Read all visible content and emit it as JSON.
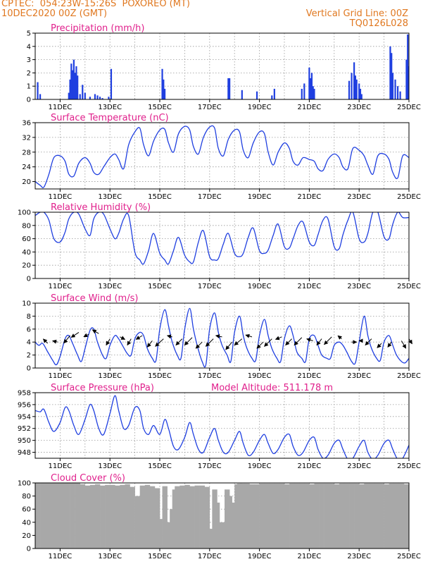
{
  "header": {
    "line1_left": "CPTEC:  054:23W-15:26S  POXOREO (MT)",
    "line2_left": "10DEC2020 00Z (GMT)",
    "line2_right": "Vertical Grid Line: 00Z",
    "line3_right": "TQ0126L028"
  },
  "colors": {
    "header": "#e07820",
    "title": "#e0208c",
    "line": "#1f3fe0",
    "bar": "#1f3fe0",
    "cloud": "#a8a8a8"
  },
  "x_axis": {
    "start": "10DEC2020 00Z",
    "end": "25DEC2020 00Z",
    "tick_labels": [
      "11DEC",
      "13DEC",
      "15DEC",
      "17DEC",
      "19DEC",
      "21DEC",
      "23DEC",
      "25DEC"
    ],
    "tick_days": [
      11,
      13,
      15,
      17,
      19,
      21,
      23,
      25
    ],
    "grid_days": [
      11,
      12,
      13,
      14,
      15,
      16,
      17,
      18,
      19,
      20,
      21,
      22,
      23,
      24
    ]
  },
  "chart_data": [
    {
      "type": "bar",
      "title": "Precipitation (mm/h)",
      "ylim": [
        0,
        5
      ],
      "yticks": [
        0,
        1,
        2,
        3,
        4,
        5
      ],
      "x": [
        10.1,
        10.2,
        11.35,
        11.4,
        11.45,
        11.5,
        11.55,
        11.6,
        11.65,
        11.7,
        11.8,
        11.9,
        12.0,
        12.2,
        12.4,
        12.5,
        12.6,
        12.7,
        12.95,
        13.05,
        15.1,
        15.15,
        15.2,
        17.75,
        17.8,
        18.3,
        18.9,
        19.5,
        19.6,
        20.7,
        20.8,
        21.0,
        21.05,
        21.1,
        21.15,
        21.2,
        22.6,
        22.7,
        22.8,
        22.85,
        22.9,
        23.0,
        23.05,
        23.1,
        24.25,
        24.3,
        24.35,
        24.45,
        24.55,
        24.65,
        24.9,
        24.95,
        25.0,
        25.05
      ],
      "values": [
        1.3,
        0.4,
        0.5,
        1.5,
        2.7,
        2.2,
        3.0,
        2.0,
        2.5,
        1.8,
        0.4,
        1.1,
        0.5,
        0.2,
        0.4,
        0.3,
        0.2,
        0.1,
        0.2,
        2.3,
        2.3,
        1.5,
        0.8,
        1.6,
        1.6,
        0.7,
        0.6,
        0.3,
        0.8,
        0.8,
        1.2,
        2.4,
        1.6,
        2.0,
        1.0,
        0.8,
        1.4,
        2.0,
        2.8,
        1.8,
        1.5,
        1.2,
        0.8,
        0.4,
        4.0,
        3.5,
        2.0,
        1.5,
        1.0,
        0.6,
        3.0,
        4.9,
        2.5,
        1.6
      ]
    },
    {
      "type": "line",
      "title": "Surface Temperature (nC)",
      "ylim": [
        18,
        36
      ],
      "yticks": [
        20,
        24,
        28,
        32,
        36
      ],
      "x": [
        10.0,
        10.2,
        10.35,
        10.55,
        10.75,
        11.0,
        11.2,
        11.35,
        11.55,
        11.75,
        12.0,
        12.2,
        12.35,
        12.55,
        12.75,
        13.0,
        13.2,
        13.35,
        13.55,
        13.75,
        14.0,
        14.2,
        14.35,
        14.55,
        14.75,
        15.0,
        15.2,
        15.35,
        15.55,
        15.75,
        16.0,
        16.2,
        16.35,
        16.55,
        16.75,
        17.0,
        17.2,
        17.35,
        17.55,
        17.75,
        18.0,
        18.2,
        18.35,
        18.55,
        18.75,
        19.0,
        19.2,
        19.35,
        19.55,
        19.75,
        20.0,
        20.2,
        20.35,
        20.55,
        20.75,
        21.0,
        21.2,
        21.35,
        21.55,
        21.75,
        22.0,
        22.2,
        22.35,
        22.55,
        22.75,
        23.0,
        23.2,
        23.35,
        23.55,
        23.75,
        24.0,
        24.2,
        24.35,
        24.55,
        24.75,
        25.0
      ],
      "values": [
        20.0,
        19.0,
        18.5,
        22.0,
        26.5,
        27.0,
        25.5,
        22.0,
        21.5,
        25.0,
        26.5,
        25.0,
        22.5,
        22.0,
        24.0,
        26.5,
        27.5,
        26.0,
        23.5,
        30.0,
        33.5,
        34.5,
        30.0,
        27.0,
        31.0,
        34.0,
        34.2,
        30.5,
        28.0,
        33.0,
        35.0,
        34.0,
        29.5,
        27.5,
        32.0,
        34.8,
        34.5,
        29.0,
        27.0,
        31.5,
        34.0,
        33.5,
        28.5,
        26.5,
        30.5,
        33.5,
        33.0,
        28.0,
        24.5,
        28.0,
        30.5,
        29.0,
        25.5,
        24.5,
        26.5,
        26.0,
        25.5,
        23.5,
        23.0,
        26.0,
        27.5,
        26.5,
        24.0,
        23.5,
        29.0,
        28.5,
        27.0,
        24.5,
        22.0,
        27.0,
        27.5,
        26.0,
        22.5,
        21.0,
        27.0,
        26.5
      ]
    },
    {
      "type": "line",
      "title": "Relative Humidity (%)",
      "ylim": [
        0,
        100
      ],
      "yticks": [
        0,
        20,
        40,
        60,
        80,
        100
      ],
      "x": [
        10.0,
        10.2,
        10.35,
        10.55,
        10.75,
        11.0,
        11.2,
        11.35,
        11.55,
        11.75,
        12.0,
        12.2,
        12.35,
        12.55,
        12.75,
        13.0,
        13.2,
        13.35,
        13.55,
        13.75,
        14.0,
        14.2,
        14.35,
        14.55,
        14.75,
        15.0,
        15.2,
        15.35,
        15.55,
        15.75,
        16.0,
        16.2,
        16.35,
        16.55,
        16.75,
        17.0,
        17.2,
        17.35,
        17.55,
        17.75,
        18.0,
        18.2,
        18.35,
        18.55,
        18.75,
        19.0,
        19.2,
        19.35,
        19.55,
        19.75,
        20.0,
        20.2,
        20.35,
        20.55,
        20.75,
        21.0,
        21.2,
        21.35,
        21.55,
        21.75,
        22.0,
        22.2,
        22.35,
        22.55,
        22.75,
        23.0,
        23.2,
        23.35,
        23.55,
        23.75,
        24.0,
        24.2,
        24.35,
        24.55,
        24.75,
        25.0
      ],
      "values": [
        95,
        100,
        100,
        88,
        60,
        55,
        70,
        90,
        100,
        97,
        75,
        65,
        90,
        100,
        97,
        75,
        60,
        68,
        90,
        95,
        40,
        28,
        22,
        42,
        68,
        38,
        28,
        22,
        42,
        62,
        35,
        25,
        25,
        55,
        72,
        33,
        28,
        30,
        52,
        68,
        38,
        33,
        38,
        62,
        76,
        42,
        38,
        43,
        65,
        82,
        48,
        46,
        60,
        80,
        85,
        55,
        50,
        66,
        88,
        90,
        48,
        45,
        66,
        88,
        100,
        60,
        55,
        68,
        100,
        100,
        63,
        60,
        82,
        100,
        92,
        92
      ]
    },
    {
      "type": "line",
      "title": "Surface Wind (m/s)",
      "ylim": [
        0,
        10
      ],
      "yticks": [
        0,
        2,
        4,
        6,
        8,
        10
      ],
      "x": [
        10.0,
        10.15,
        10.3,
        10.5,
        10.7,
        10.85,
        11.0,
        11.2,
        11.35,
        11.5,
        11.7,
        11.85,
        12.0,
        12.2,
        12.35,
        12.5,
        12.7,
        12.85,
        13.0,
        13.2,
        13.35,
        13.5,
        13.7,
        13.85,
        14.0,
        14.2,
        14.35,
        14.5,
        14.7,
        14.85,
        15.0,
        15.2,
        15.35,
        15.5,
        15.7,
        15.85,
        16.0,
        16.2,
        16.35,
        16.5,
        16.7,
        16.85,
        17.0,
        17.2,
        17.35,
        17.5,
        17.7,
        17.85,
        18.0,
        18.2,
        18.35,
        18.5,
        18.7,
        18.85,
        19.0,
        19.2,
        19.35,
        19.5,
        19.7,
        19.85,
        20.0,
        20.2,
        20.35,
        20.5,
        20.7,
        20.85,
        21.0,
        21.2,
        21.35,
        21.5,
        21.7,
        21.85,
        22.0,
        22.2,
        22.35,
        22.5,
        22.7,
        22.85,
        23.0,
        23.2,
        23.35,
        23.5,
        23.7,
        23.85,
        24.0,
        24.2,
        24.35,
        24.5,
        24.7,
        24.85,
        25.0
      ],
      "values": [
        4.0,
        3.5,
        3.8,
        2.5,
        1.2,
        0.5,
        1.8,
        4.5,
        5.0,
        3.8,
        2.0,
        1.0,
        3.0,
        5.8,
        6.0,
        4.0,
        2.0,
        1.5,
        3.5,
        5.0,
        4.5,
        3.5,
        2.2,
        2.0,
        4.5,
        5.5,
        5.0,
        3.0,
        1.5,
        1.2,
        6.0,
        9.0,
        6.5,
        4.0,
        2.0,
        1.5,
        6.0,
        9.2,
        6.0,
        3.5,
        1.0,
        0.5,
        6.0,
        8.5,
        5.5,
        3.5,
        2.0,
        1.0,
        5.5,
        8.0,
        5.0,
        3.0,
        1.5,
        1.2,
        5.0,
        7.5,
        5.0,
        3.0,
        1.5,
        1.0,
        4.5,
        6.5,
        5.0,
        2.5,
        1.5,
        1.0,
        4.5,
        5.0,
        3.5,
        2.0,
        1.5,
        1.5,
        3.5,
        4.0,
        3.5,
        2.5,
        1.0,
        0.8,
        4.0,
        8.0,
        5.0,
        3.0,
        1.5,
        1.2,
        4.0,
        5.0,
        3.5,
        2.0,
        1.0,
        0.8,
        1.5
      ]
    },
    {
      "type": "line",
      "title": "Surface Pressure (hPa)",
      "annotation": "Model Altitude: 511.178 m",
      "ylim": [
        947,
        958
      ],
      "yticks": [
        948,
        950,
        952,
        954,
        956,
        958
      ],
      "x": [
        10.0,
        10.2,
        10.35,
        10.55,
        10.75,
        11.0,
        11.2,
        11.35,
        11.55,
        11.75,
        12.0,
        12.2,
        12.35,
        12.55,
        12.75,
        13.0,
        13.2,
        13.35,
        13.55,
        13.75,
        14.0,
        14.2,
        14.35,
        14.55,
        14.75,
        15.0,
        15.2,
        15.35,
        15.55,
        15.75,
        16.0,
        16.2,
        16.35,
        16.55,
        16.75,
        17.0,
        17.2,
        17.35,
        17.55,
        17.75,
        18.0,
        18.2,
        18.35,
        18.55,
        18.75,
        19.0,
        19.2,
        19.35,
        19.55,
        19.75,
        20.0,
        20.2,
        20.35,
        20.55,
        20.75,
        21.0,
        21.2,
        21.35,
        21.55,
        21.75,
        22.0,
        22.2,
        22.35,
        22.55,
        22.75,
        23.0,
        23.2,
        23.35,
        23.55,
        23.75,
        24.0,
        24.2,
        24.35,
        24.55,
        24.75,
        25.0
      ],
      "values": [
        955.0,
        954.8,
        955.2,
        953.0,
        951.5,
        953.0,
        955.5,
        955.0,
        952.5,
        951.0,
        953.5,
        956.0,
        955.0,
        952.0,
        951.0,
        954.5,
        957.5,
        955.0,
        952.0,
        952.5,
        955.5,
        955.0,
        952.0,
        951.0,
        952.5,
        951.0,
        953.5,
        952.0,
        949.0,
        948.5,
        950.5,
        953.0,
        951.0,
        948.5,
        948.0,
        950.5,
        952.0,
        950.0,
        948.0,
        948.0,
        950.0,
        951.5,
        949.5,
        947.5,
        948.0,
        950.0,
        951.0,
        949.5,
        947.8,
        948.5,
        950.5,
        951.0,
        949.0,
        947.5,
        948.0,
        950.0,
        950.5,
        948.5,
        947.0,
        947.5,
        949.5,
        950.0,
        948.5,
        946.8,
        947.0,
        949.0,
        950.0,
        948.0,
        946.8,
        947.5,
        949.5,
        950.0,
        948.5,
        946.8,
        947.0,
        949.2
      ]
    },
    {
      "type": "bar",
      "title": "Cloud Cover (%)",
      "ylim": [
        0,
        100
      ],
      "yticks": [
        0,
        20,
        40,
        60,
        80,
        100
      ],
      "x": [
        10.0,
        10.2,
        10.4,
        10.6,
        10.8,
        11.0,
        11.2,
        11.4,
        11.6,
        11.8,
        12.0,
        12.2,
        12.4,
        12.6,
        12.8,
        13.0,
        13.2,
        13.4,
        13.6,
        13.8,
        14.0,
        14.2,
        14.4,
        14.6,
        14.8,
        14.9,
        15.0,
        15.1,
        15.2,
        15.3,
        15.4,
        15.5,
        15.6,
        15.8,
        16.0,
        16.2,
        16.4,
        16.6,
        16.8,
        16.9,
        17.0,
        17.1,
        17.2,
        17.3,
        17.4,
        17.5,
        17.6,
        17.7,
        17.8,
        17.9,
        18.0,
        18.1,
        18.2,
        18.4,
        18.6,
        18.8,
        19.0,
        19.2,
        19.4,
        19.6,
        19.8,
        20.0,
        20.2,
        20.4,
        20.6,
        20.8,
        21.0,
        21.2,
        21.4,
        21.6,
        21.8,
        22.0,
        22.2,
        22.4,
        22.6,
        22.8,
        23.0,
        23.2,
        23.4,
        23.6,
        23.8,
        24.0,
        24.2,
        24.4,
        24.6,
        24.8,
        24.9
      ],
      "values": [
        100,
        100,
        100,
        100,
        100,
        100,
        100,
        100,
        100,
        98,
        96,
        97,
        98,
        96,
        97,
        97,
        96,
        97,
        98,
        94,
        80,
        96,
        97,
        95,
        92,
        45,
        5,
        95,
        40,
        10,
        60,
        90,
        95,
        96,
        97,
        95,
        96,
        96,
        94,
        10,
        30,
        90,
        70,
        10,
        40,
        5,
        90,
        80,
        40,
        70,
        98,
        99,
        99,
        99,
        98,
        98,
        99,
        99,
        99,
        99,
        99,
        98,
        99,
        99,
        99,
        99,
        98,
        99,
        99,
        99,
        99,
        98,
        99,
        99,
        99,
        99,
        98,
        99,
        99,
        99,
        99,
        98,
        99,
        99,
        99,
        98,
        98
      ]
    }
  ],
  "wind_vectors": {
    "x": [
      10.5,
      10.9,
      11.4,
      11.75,
      12.15,
      12.55,
      13.0,
      13.4,
      13.85,
      14.3,
      14.7,
      15.15,
      15.5,
      15.9,
      16.3,
      16.7,
      17.15,
      17.5,
      17.9,
      18.3,
      18.7,
      19.15,
      19.5,
      19.9,
      20.3,
      20.7,
      21.15,
      21.5,
      21.9,
      22.3,
      22.7,
      23.15,
      23.5,
      23.9,
      24.3,
      24.7,
      25.0
    ],
    "y": [
      3.8,
      4.0,
      5.0,
      5.5,
      5.2,
      5.3,
      4.5,
      4.8,
      4.5,
      5.0,
      4.2,
      4.5,
      4.8,
      4.5,
      4.7,
      4.0,
      4.5,
      4.8,
      4.0,
      4.5,
      4.8,
      4.0,
      4.5,
      4.8,
      4.5,
      4.7,
      4.2,
      4.5,
      4.8,
      4.5,
      4.0,
      4.2,
      4.5,
      3.8,
      4.0,
      4.2,
      4.5
    ],
    "u": [
      -0.7,
      -0.8,
      -1.0,
      -1.2,
      -0.8,
      -1.0,
      -0.6,
      0.8,
      -0.6,
      -1.0,
      -0.8,
      -1.3,
      -0.8,
      -1.0,
      -1.2,
      -1.0,
      -1.2,
      -1.0,
      -1.0,
      -1.2,
      -1.0,
      -1.0,
      -1.2,
      -1.0,
      -1.0,
      -1.2,
      -1.0,
      -0.8,
      -1.2,
      -0.6,
      0.8,
      -0.6,
      -1.0,
      -0.7,
      -0.6,
      0.7,
      0.5
    ],
    "v": [
      0.7,
      0.2,
      -1.2,
      -0.8,
      -0.4,
      0.6,
      -1.0,
      -0.4,
      -1.0,
      -0.6,
      -1.0,
      -1.2,
      0.2,
      -1.0,
      -1.2,
      -1.0,
      -1.2,
      0.2,
      -1.2,
      -1.0,
      0.3,
      -1.0,
      -1.2,
      -0.4,
      -1.0,
      -1.2,
      0.3,
      -1.0,
      -1.2,
      0.5,
      0.0,
      0.0,
      -1.0,
      -0.7,
      -0.8,
      -1.2,
      -0.8
    ]
  }
}
